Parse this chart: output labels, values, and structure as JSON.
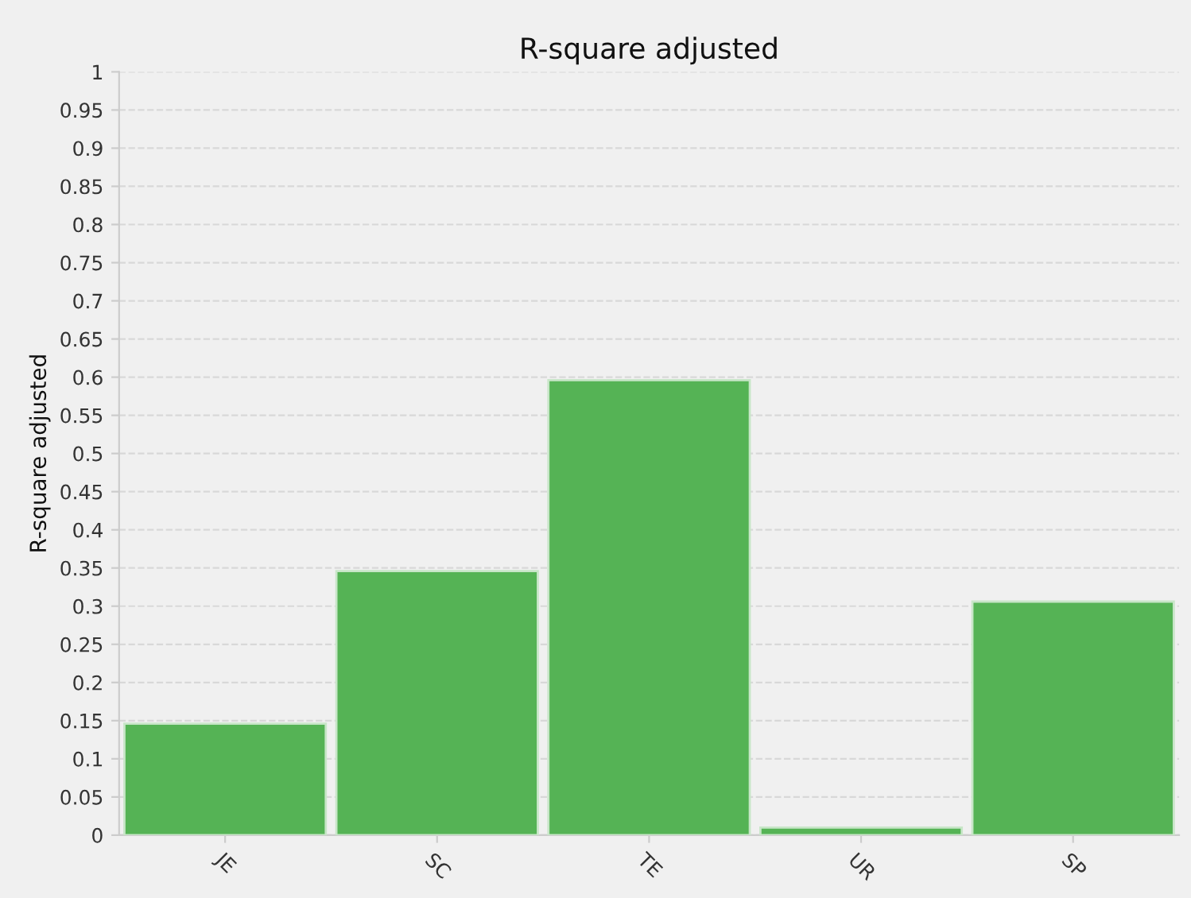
{
  "chart_data": {
    "type": "bar",
    "title": "R-square adjusted",
    "ylabel": "R-square adjusted",
    "categories": [
      "JE",
      "SC",
      "TE",
      "UR",
      "SP"
    ],
    "values": [
      0.146,
      0.346,
      0.596,
      0.01,
      0.306
    ],
    "color": "#55b355",
    "ylim": [
      0,
      1
    ],
    "yticks": [
      0,
      0.05,
      0.1,
      0.15,
      0.2,
      0.25,
      0.3,
      0.35,
      0.4,
      0.45,
      0.5,
      0.55,
      0.6,
      0.65,
      0.7,
      0.75,
      0.8,
      0.85,
      0.9,
      0.95,
      1
    ],
    "grid": "y",
    "line_style": "dashed",
    "legend": false
  }
}
